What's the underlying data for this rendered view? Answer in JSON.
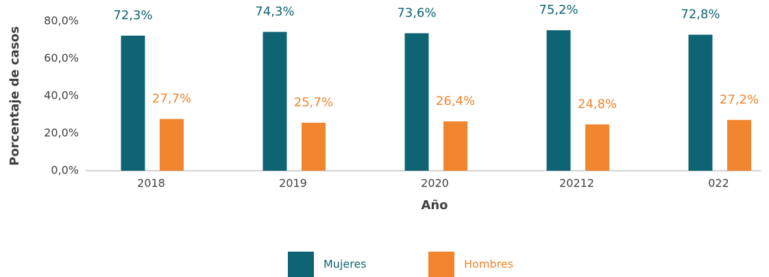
{
  "chart_data": {
    "type": "bar",
    "categories": [
      "2018",
      "2019",
      "2020",
      "20212",
      "022"
    ],
    "series": [
      {
        "name": "Mujeres",
        "color": "#0e6473",
        "values": [
          72.3,
          74.3,
          73.6,
          75.2,
          72.8
        ],
        "value_labels": [
          "72,3%",
          "74,3%",
          "73,6%",
          "75,2%",
          "72,8%"
        ]
      },
      {
        "name": "Hombres",
        "color": "#f0852d",
        "values": [
          27.7,
          25.7,
          26.4,
          24.8,
          27.2
        ],
        "value_labels": [
          "27,7%",
          "25,7%",
          "26,4%",
          "24,8%",
          "27,2%"
        ]
      }
    ],
    "ylim": [
      0,
      80
    ],
    "yticks": [
      {
        "value": 0,
        "label": "0,0%"
      },
      {
        "value": 20,
        "label": "20,0%"
      },
      {
        "value": 40,
        "label": "40,0%"
      },
      {
        "value": 60,
        "label": "60,0%"
      },
      {
        "value": 80,
        "label": "80,0%"
      }
    ],
    "ylabel": "Porcentaje de casos",
    "xlabel": "Año",
    "legend": "bottom"
  }
}
